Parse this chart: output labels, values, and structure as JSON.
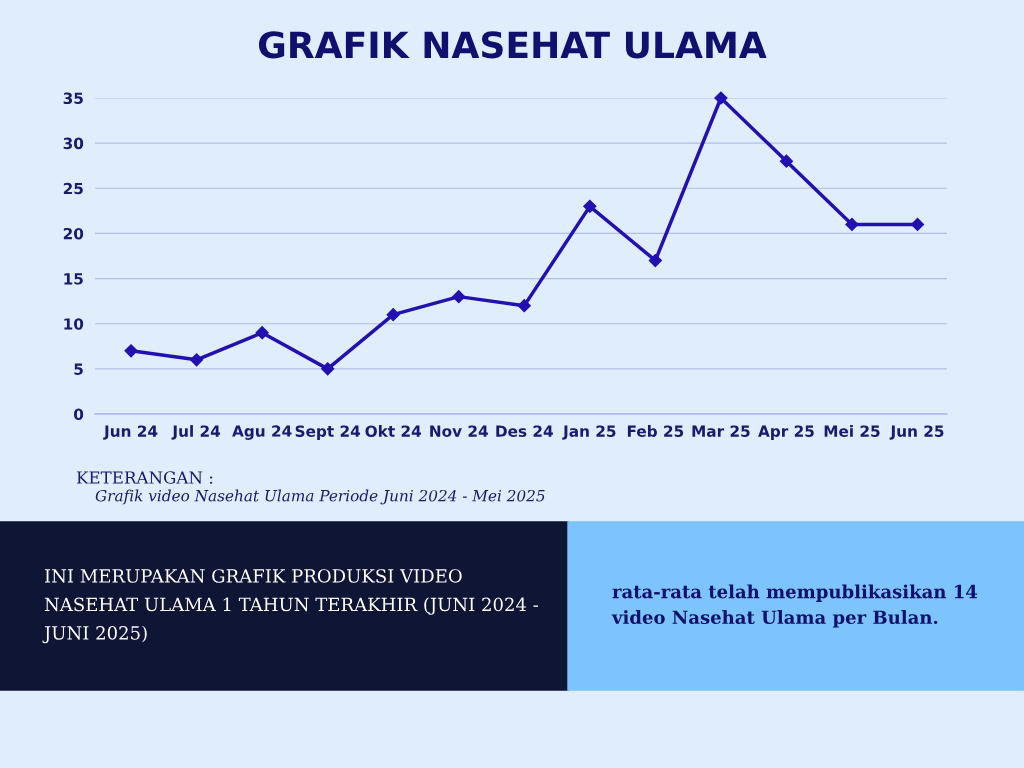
{
  "chart_data": {
    "type": "line",
    "title": "GRAFIK NASEHAT ULAMA",
    "categories": [
      "Jun 24",
      "Jul 24",
      "Agu 24",
      "Sept 24",
      "Okt 24",
      "Nov 24",
      "Des 24",
      "Jan 25",
      "Feb 25",
      "Mar 25",
      "Apr 25",
      "Mei 25",
      "Jun 25"
    ],
    "series": [
      {
        "color": "#2211b0",
        "values": [
          7,
          6,
          9,
          5,
          11,
          13,
          12,
          23,
          17,
          35,
          28,
          21,
          21
        ]
      }
    ],
    "ylim": [
      0,
      35
    ],
    "yticks": [
      0,
      5,
      10,
      15,
      20,
      25,
      30,
      35
    ],
    "grid": "y",
    "marker": "diamond",
    "line_style": "solid",
    "legend": false,
    "annotations": [
      "KETERANGAN :",
      "Grafik video Nasehat Ulama Periode Juni 2024 - Mei 2025",
      "INI MERUPAKAN GRAFIK PRODUKSI VIDEO NASEHAT ULAMA 1 TAHUN TERAKHIR (JUNI 2024 - JUNI 2025)",
      "rata-rata telah mempublikasikan 14 video Nasehat Ulama per Bulan."
    ]
  }
}
